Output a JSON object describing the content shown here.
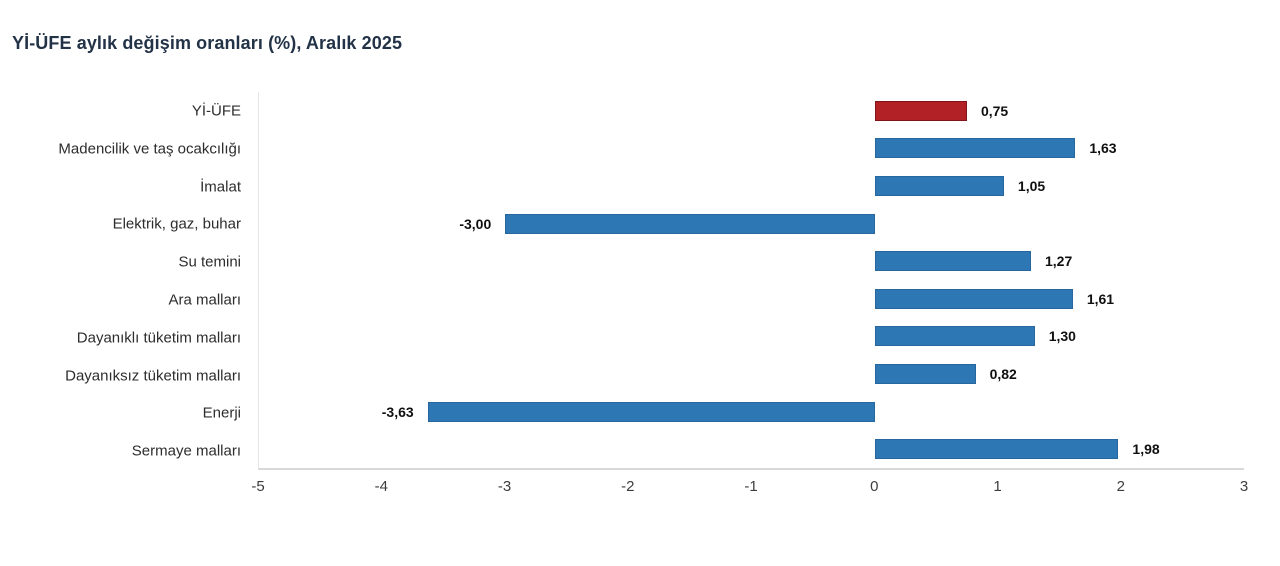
{
  "header": {
    "title": "Yİ-ÜFE aylık değişim oranları (%), Aralık 2025"
  },
  "chart_data": {
    "type": "bar",
    "orientation": "horizontal",
    "title": "Yİ-ÜFE aylık değişim oranları (%), Aralık 2025",
    "xlabel": "",
    "ylabel": "",
    "xlim": [
      -5,
      3
    ],
    "xticks": [
      -5,
      -4,
      -3,
      -2,
      -1,
      0,
      1,
      2,
      3
    ],
    "grid": false,
    "legend": null,
    "categories": [
      "Yİ-ÜFE",
      "Madencilik ve taş ocakcılığı",
      "İmalat",
      "Elektrik, gaz, buhar",
      "Su temini",
      "Ara malları",
      "Dayanıklı tüketim malları",
      "Dayanıksız tüketim malları",
      "Enerji",
      "Sermaye malları"
    ],
    "values": [
      0.75,
      1.63,
      1.05,
      -3.0,
      1.27,
      1.61,
      1.3,
      0.82,
      -3.63,
      1.98
    ],
    "value_labels": [
      "0,75",
      "1,63",
      "1,05",
      "-3,00",
      "1,27",
      "1,61",
      "1,30",
      "0,82",
      "-3,63",
      "1,98"
    ],
    "bar_roles": [
      "highlight",
      "default",
      "default",
      "default",
      "default",
      "default",
      "default",
      "default",
      "default",
      "default"
    ],
    "colors": {
      "highlight_fill": "#b22126",
      "highlight_border": "#801518",
      "default_fill": "#2e77b5",
      "default_border": "#27679e",
      "axis_line": "#d8d8d8",
      "title_text": "#233347",
      "category_text": "#2d2d2d",
      "value_text": "#101010",
      "tick_text": "#3d3d3d"
    }
  }
}
